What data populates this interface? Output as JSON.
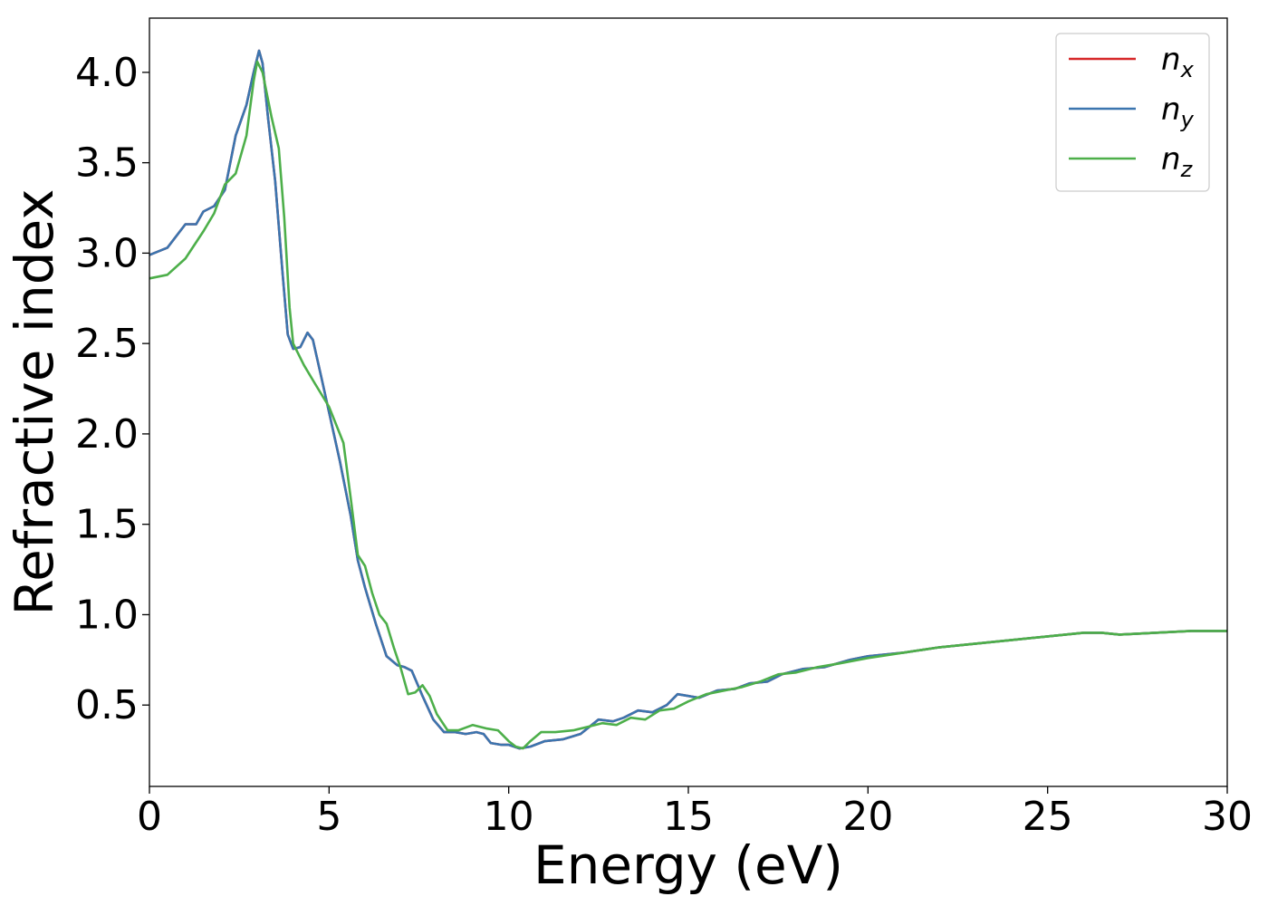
{
  "chart_data": {
    "type": "line",
    "title": "",
    "xlabel": "Energy (eV)",
    "ylabel": "Refractive index",
    "xlim": [
      0,
      30
    ],
    "ylim": [
      0.05,
      4.3
    ],
    "xticks": [
      0,
      5,
      10,
      15,
      20,
      25,
      30
    ],
    "yticks": [
      0.5,
      1.0,
      1.5,
      2.0,
      2.5,
      3.0,
      3.5,
      4.0
    ],
    "grid": false,
    "legend_position": "top-right",
    "series": [
      {
        "name": "n",
        "subscript": "x",
        "color": "#d62728",
        "points": [
          [
            0,
            2.99
          ],
          [
            0.5,
            3.03
          ],
          [
            1,
            3.16
          ],
          [
            1.3,
            3.16
          ],
          [
            1.5,
            3.23
          ],
          [
            1.8,
            3.26
          ],
          [
            2.1,
            3.35
          ],
          [
            2.4,
            3.65
          ],
          [
            2.7,
            3.82
          ],
          [
            2.9,
            4.0
          ],
          [
            3.05,
            4.12
          ],
          [
            3.15,
            4.05
          ],
          [
            3.3,
            3.75
          ],
          [
            3.5,
            3.4
          ],
          [
            3.7,
            2.9
          ],
          [
            3.85,
            2.55
          ],
          [
            4.0,
            2.47
          ],
          [
            4.2,
            2.48
          ],
          [
            4.4,
            2.56
          ],
          [
            4.55,
            2.52
          ],
          [
            4.8,
            2.3
          ],
          [
            5.0,
            2.12
          ],
          [
            5.3,
            1.85
          ],
          [
            5.6,
            1.55
          ],
          [
            5.8,
            1.3
          ],
          [
            6.0,
            1.15
          ],
          [
            6.3,
            0.95
          ],
          [
            6.6,
            0.77
          ],
          [
            6.9,
            0.72
          ],
          [
            7.1,
            0.71
          ],
          [
            7.3,
            0.69
          ],
          [
            7.6,
            0.55
          ],
          [
            7.9,
            0.42
          ],
          [
            8.2,
            0.35
          ],
          [
            8.5,
            0.35
          ],
          [
            8.8,
            0.34
          ],
          [
            9.1,
            0.35
          ],
          [
            9.3,
            0.34
          ],
          [
            9.5,
            0.29
          ],
          [
            9.8,
            0.28
          ],
          [
            10.0,
            0.28
          ],
          [
            10.3,
            0.26
          ],
          [
            10.6,
            0.27
          ],
          [
            11.0,
            0.3
          ],
          [
            11.5,
            0.31
          ],
          [
            12.0,
            0.34
          ],
          [
            12.5,
            0.42
          ],
          [
            12.9,
            0.41
          ],
          [
            13.2,
            0.43
          ],
          [
            13.6,
            0.47
          ],
          [
            14.0,
            0.46
          ],
          [
            14.4,
            0.5
          ],
          [
            14.7,
            0.56
          ],
          [
            15.0,
            0.55
          ],
          [
            15.3,
            0.54
          ],
          [
            15.8,
            0.58
          ],
          [
            16.3,
            0.59
          ],
          [
            16.7,
            0.62
          ],
          [
            17.2,
            0.63
          ],
          [
            17.6,
            0.67
          ],
          [
            18.2,
            0.7
          ],
          [
            18.8,
            0.71
          ],
          [
            19.5,
            0.75
          ],
          [
            20.0,
            0.77
          ],
          [
            21.0,
            0.79
          ],
          [
            22.0,
            0.82
          ],
          [
            23.0,
            0.84
          ],
          [
            24.0,
            0.86
          ],
          [
            25.0,
            0.88
          ],
          [
            26.0,
            0.9
          ],
          [
            26.5,
            0.9
          ],
          [
            27.0,
            0.89
          ],
          [
            28.0,
            0.9
          ],
          [
            29.0,
            0.91
          ],
          [
            30.0,
            0.91
          ]
        ]
      },
      {
        "name": "n",
        "subscript": "y",
        "color": "#3b75af",
        "points": [
          [
            0,
            2.99
          ],
          [
            0.5,
            3.03
          ],
          [
            1,
            3.16
          ],
          [
            1.3,
            3.16
          ],
          [
            1.5,
            3.23
          ],
          [
            1.8,
            3.26
          ],
          [
            2.1,
            3.35
          ],
          [
            2.4,
            3.65
          ],
          [
            2.7,
            3.82
          ],
          [
            2.9,
            4.0
          ],
          [
            3.05,
            4.12
          ],
          [
            3.15,
            4.05
          ],
          [
            3.3,
            3.75
          ],
          [
            3.5,
            3.4
          ],
          [
            3.7,
            2.9
          ],
          [
            3.85,
            2.55
          ],
          [
            4.0,
            2.47
          ],
          [
            4.2,
            2.48
          ],
          [
            4.4,
            2.56
          ],
          [
            4.55,
            2.52
          ],
          [
            4.8,
            2.3
          ],
          [
            5.0,
            2.12
          ],
          [
            5.3,
            1.85
          ],
          [
            5.6,
            1.55
          ],
          [
            5.8,
            1.3
          ],
          [
            6.0,
            1.15
          ],
          [
            6.3,
            0.95
          ],
          [
            6.6,
            0.77
          ],
          [
            6.9,
            0.72
          ],
          [
            7.1,
            0.71
          ],
          [
            7.3,
            0.69
          ],
          [
            7.6,
            0.55
          ],
          [
            7.9,
            0.42
          ],
          [
            8.2,
            0.35
          ],
          [
            8.5,
            0.35
          ],
          [
            8.8,
            0.34
          ],
          [
            9.1,
            0.35
          ],
          [
            9.3,
            0.34
          ],
          [
            9.5,
            0.29
          ],
          [
            9.8,
            0.28
          ],
          [
            10.0,
            0.28
          ],
          [
            10.3,
            0.26
          ],
          [
            10.6,
            0.27
          ],
          [
            11.0,
            0.3
          ],
          [
            11.5,
            0.31
          ],
          [
            12.0,
            0.34
          ],
          [
            12.5,
            0.42
          ],
          [
            12.9,
            0.41
          ],
          [
            13.2,
            0.43
          ],
          [
            13.6,
            0.47
          ],
          [
            14.0,
            0.46
          ],
          [
            14.4,
            0.5
          ],
          [
            14.7,
            0.56
          ],
          [
            15.0,
            0.55
          ],
          [
            15.3,
            0.54
          ],
          [
            15.8,
            0.58
          ],
          [
            16.3,
            0.59
          ],
          [
            16.7,
            0.62
          ],
          [
            17.2,
            0.63
          ],
          [
            17.6,
            0.67
          ],
          [
            18.2,
            0.7
          ],
          [
            18.8,
            0.71
          ],
          [
            19.5,
            0.75
          ],
          [
            20.0,
            0.77
          ],
          [
            21.0,
            0.79
          ],
          [
            22.0,
            0.82
          ],
          [
            23.0,
            0.84
          ],
          [
            24.0,
            0.86
          ],
          [
            25.0,
            0.88
          ],
          [
            26.0,
            0.9
          ],
          [
            26.5,
            0.9
          ],
          [
            27.0,
            0.89
          ],
          [
            28.0,
            0.9
          ],
          [
            29.0,
            0.91
          ],
          [
            30.0,
            0.91
          ]
        ]
      },
      {
        "name": "n",
        "subscript": "z",
        "color": "#4daf4a",
        "points": [
          [
            0,
            2.86
          ],
          [
            0.5,
            2.88
          ],
          [
            1.0,
            2.97
          ],
          [
            1.5,
            3.12
          ],
          [
            1.8,
            3.22
          ],
          [
            2.1,
            3.38
          ],
          [
            2.4,
            3.44
          ],
          [
            2.7,
            3.65
          ],
          [
            2.9,
            3.95
          ],
          [
            3.0,
            4.06
          ],
          [
            3.15,
            4.0
          ],
          [
            3.4,
            3.75
          ],
          [
            3.6,
            3.58
          ],
          [
            3.75,
            3.2
          ],
          [
            3.9,
            2.7
          ],
          [
            4.0,
            2.5
          ],
          [
            4.3,
            2.38
          ],
          [
            4.6,
            2.28
          ],
          [
            5.0,
            2.15
          ],
          [
            5.4,
            1.95
          ],
          [
            5.6,
            1.65
          ],
          [
            5.8,
            1.33
          ],
          [
            6.0,
            1.27
          ],
          [
            6.2,
            1.12
          ],
          [
            6.4,
            1.0
          ],
          [
            6.6,
            0.95
          ],
          [
            6.8,
            0.82
          ],
          [
            7.0,
            0.7
          ],
          [
            7.2,
            0.56
          ],
          [
            7.4,
            0.57
          ],
          [
            7.6,
            0.61
          ],
          [
            7.8,
            0.55
          ],
          [
            8.0,
            0.45
          ],
          [
            8.3,
            0.36
          ],
          [
            8.6,
            0.36
          ],
          [
            9.0,
            0.39
          ],
          [
            9.4,
            0.37
          ],
          [
            9.7,
            0.36
          ],
          [
            10.0,
            0.3
          ],
          [
            10.2,
            0.27
          ],
          [
            10.4,
            0.26
          ],
          [
            10.6,
            0.3
          ],
          [
            10.9,
            0.35
          ],
          [
            11.3,
            0.35
          ],
          [
            11.8,
            0.36
          ],
          [
            12.2,
            0.38
          ],
          [
            12.6,
            0.4
          ],
          [
            13.0,
            0.39
          ],
          [
            13.4,
            0.43
          ],
          [
            13.8,
            0.42
          ],
          [
            14.2,
            0.47
          ],
          [
            14.6,
            0.48
          ],
          [
            15.0,
            0.52
          ],
          [
            15.5,
            0.56
          ],
          [
            16.0,
            0.58
          ],
          [
            16.5,
            0.6
          ],
          [
            17.0,
            0.63
          ],
          [
            17.5,
            0.67
          ],
          [
            18.0,
            0.68
          ],
          [
            18.6,
            0.71
          ],
          [
            19.2,
            0.73
          ],
          [
            20.0,
            0.76
          ],
          [
            21.0,
            0.79
          ],
          [
            22.0,
            0.82
          ],
          [
            23.0,
            0.84
          ],
          [
            24.0,
            0.86
          ],
          [
            25.0,
            0.88
          ],
          [
            26.0,
            0.9
          ],
          [
            26.5,
            0.9
          ],
          [
            27.0,
            0.89
          ],
          [
            28.0,
            0.9
          ],
          [
            29.0,
            0.91
          ],
          [
            30.0,
            0.91
          ]
        ]
      }
    ]
  }
}
